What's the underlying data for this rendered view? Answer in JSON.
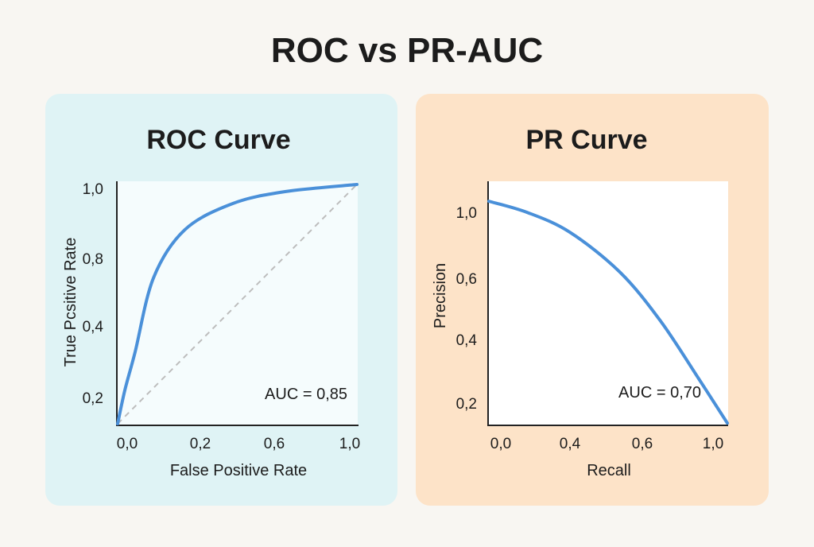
{
  "title": "ROC vs PR-AUC",
  "colors": {
    "background": "#f8f6f2",
    "roc_panel": "#dff3f5",
    "pr_panel": "#fde3c8",
    "curve": "#4a90d9",
    "diagonal": "#bdbdbd"
  },
  "chart_data": [
    {
      "type": "line",
      "title": "ROC Curve",
      "xlabel": "False Positive Rate",
      "ylabel": "True Pcsitive Rate",
      "x_tick_labels": [
        "0,0",
        "0,2",
        "0,6",
        "1,0"
      ],
      "y_tick_labels": [
        "1,0",
        "0,8",
        "0,4",
        "0,2"
      ],
      "xlim": [
        0,
        1
      ],
      "ylim": [
        0,
        1
      ],
      "grid": false,
      "annotation": "AUC = 0,85",
      "series": [
        {
          "name": "ROC",
          "x": [
            0,
            0.03,
            0.073,
            0.15,
            0.28,
            0.48,
            0.7,
            1.0
          ],
          "y": [
            0,
            0.14,
            0.3,
            0.61,
            0.81,
            0.92,
            0.97,
            1.0
          ]
        },
        {
          "name": "Random",
          "style": "dashed",
          "x": [
            0,
            1
          ],
          "y": [
            0,
            1
          ]
        }
      ]
    },
    {
      "type": "line",
      "title": "PR Curve",
      "xlabel": "Recall",
      "ylabel": "Precision",
      "x_tick_labels": [
        "0,0",
        "0,4",
        "0,6",
        "1,0"
      ],
      "y_tick_labels": [
        "1,0",
        "0,6",
        "0,4",
        "0,2"
      ],
      "xlim": [
        0,
        1
      ],
      "ylim": [
        0,
        1.1
      ],
      "grid": false,
      "annotation": "AUC = 0,70",
      "series": [
        {
          "name": "PR",
          "x": [
            0,
            0.16,
            0.34,
            0.55,
            0.72,
            0.88,
            1.0
          ],
          "y": [
            1.01,
            0.96,
            0.87,
            0.69,
            0.47,
            0.21,
            0.01
          ]
        }
      ]
    }
  ]
}
